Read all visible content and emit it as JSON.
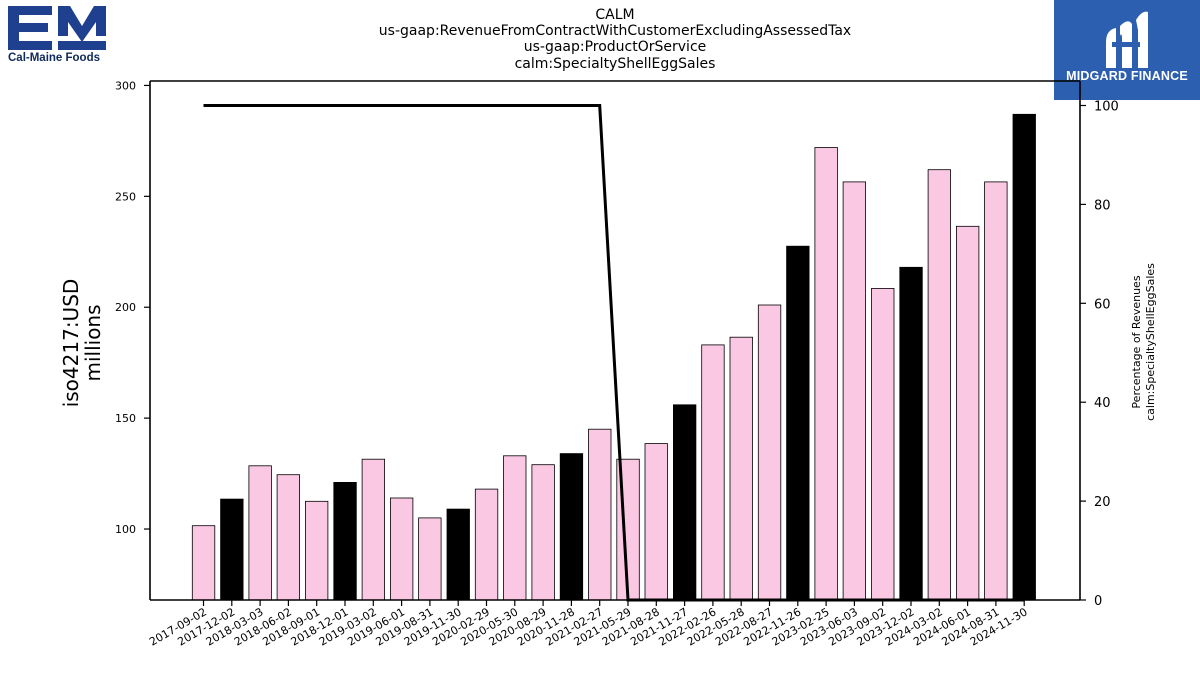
{
  "header": {
    "titles": [
      "CALM",
      "us-gaap:RevenueFromContractWithCustomerExcludingAssessedTax",
      "us-gaap:ProductOrService",
      "calm:SpecialtyShellEggSales"
    ]
  },
  "logos": {
    "left_text": "Cal-Maine Foods",
    "left_color": "#1f3f8f",
    "right_text": "MIDGARD FINANCE",
    "right_bg": "#2d5fb0"
  },
  "chart_data": {
    "type": "bar",
    "categories": [
      "2017-09-02",
      "2017-12-02",
      "2018-03-03",
      "2018-06-02",
      "2018-09-01",
      "2018-12-01",
      "2019-03-02",
      "2019-06-01",
      "2019-08-31",
      "2019-11-30",
      "2020-02-29",
      "2020-05-30",
      "2020-08-29",
      "2020-11-28",
      "2021-02-27",
      "2021-05-29",
      "2021-08-28",
      "2021-11-27",
      "2022-02-26",
      "2022-05-28",
      "2022-08-27",
      "2022-11-26",
      "2023-02-25",
      "2023-06-03",
      "2023-09-02",
      "2023-12-02",
      "2024-03-02",
      "2024-06-01",
      "2024-08-31",
      "2024-11-30"
    ],
    "values": [
      101.5,
      113.5,
      128.5,
      124.5,
      112.5,
      121,
      131.5,
      114,
      105,
      109,
      118,
      133,
      129,
      134,
      145,
      131.5,
      138.5,
      156,
      183,
      186.5,
      201,
      227.5,
      272,
      256.5,
      208.5,
      218,
      262,
      236.5,
      256.5,
      287
    ],
    "bar_colors": [
      "#fbc8e3",
      "#000000",
      "#fbc8e3",
      "#fbc8e3",
      "#fbc8e3",
      "#000000",
      "#fbc8e3",
      "#fbc8e3",
      "#fbc8e3",
      "#000000",
      "#fbc8e3",
      "#fbc8e3",
      "#fbc8e3",
      "#000000",
      "#fbc8e3",
      "#fbc8e3",
      "#fbc8e3",
      "#000000",
      "#fbc8e3",
      "#fbc8e3",
      "#fbc8e3",
      "#000000",
      "#fbc8e3",
      "#fbc8e3",
      "#fbc8e3",
      "#000000",
      "#fbc8e3",
      "#fbc8e3",
      "#fbc8e3",
      "#000000"
    ],
    "ylabel": "iso4217:USD\nmillions",
    "ylim": [
      68,
      302
    ],
    "yticks": [
      100,
      150,
      200,
      250,
      300
    ],
    "secondary": {
      "type": "line",
      "ylabel": "Percentage of Revenues\ncalm:SpecialtyShellEggSales",
      "ylim": [
        0,
        100
      ],
      "yticks": [
        0,
        20,
        40,
        60,
        80,
        100
      ],
      "values": [
        100,
        100,
        100,
        100,
        100,
        100,
        100,
        100,
        100,
        100,
        100,
        100,
        100,
        100,
        100,
        0,
        0,
        0,
        0,
        0,
        0,
        0,
        0,
        0,
        0,
        0,
        0,
        0,
        0,
        0
      ],
      "color": "#000000"
    },
    "grid": false,
    "legend": "none"
  }
}
